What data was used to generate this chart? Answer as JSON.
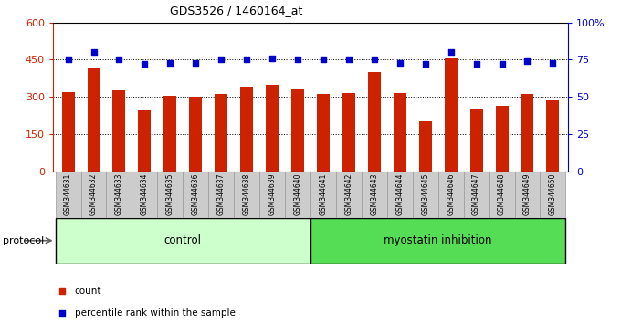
{
  "title": "GDS3526 / 1460164_at",
  "samples": [
    "GSM344631",
    "GSM344632",
    "GSM344633",
    "GSM344634",
    "GSM344635",
    "GSM344636",
    "GSM344637",
    "GSM344638",
    "GSM344639",
    "GSM344640",
    "GSM344641",
    "GSM344642",
    "GSM344643",
    "GSM344644",
    "GSM344645",
    "GSM344646",
    "GSM344647",
    "GSM344648",
    "GSM344649",
    "GSM344650"
  ],
  "counts": [
    320,
    415,
    325,
    245,
    305,
    300,
    310,
    340,
    350,
    335,
    310,
    315,
    400,
    315,
    200,
    455,
    250,
    265,
    310,
    285
  ],
  "percentile_ranks": [
    75,
    80,
    75,
    72,
    73,
    73,
    75,
    75,
    76,
    75,
    75,
    75,
    75,
    73,
    72,
    80,
    72,
    72,
    74,
    73
  ],
  "control_count": 10,
  "myostatin_count": 10,
  "bar_color": "#cc2200",
  "dot_color": "#0000cc",
  "left_yaxis_color": "#cc2200",
  "right_yaxis_color": "#0000cc",
  "left_ylim": [
    0,
    600
  ],
  "right_ylim": [
    0,
    100
  ],
  "left_yticks": [
    0,
    150,
    300,
    450,
    600
  ],
  "right_yticks": [
    0,
    25,
    50,
    75,
    100
  ],
  "right_yticklabels": [
    "0",
    "25",
    "50",
    "75",
    "100%"
  ],
  "control_bg": "#ccffcc",
  "myostatin_bg": "#55dd55",
  "xlabel_bg": "#cccccc",
  "grid_color": "#000000",
  "protocol_label": "protocol",
  "control_label": "control",
  "myostatin_label": "myostatin inhibition",
  "legend_count_label": "count",
  "legend_pct_label": "percentile rank within the sample",
  "bar_width": 0.5
}
